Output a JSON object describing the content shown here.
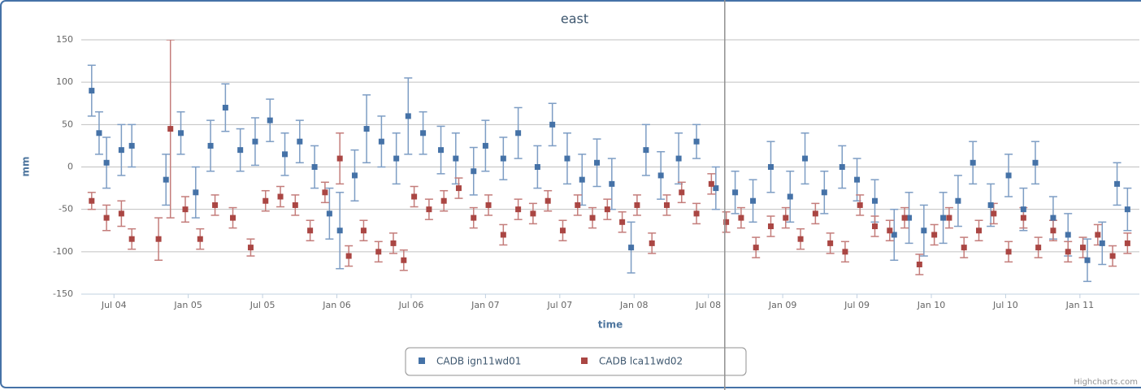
{
  "chart_data": {
    "type": "errorbar-scatter",
    "title": "east",
    "x_label": "time",
    "y_label": "mm",
    "credit": "Highcharts.com",
    "xlim": [
      2004.28,
      2011.4
    ],
    "ylim": [
      -150,
      150
    ],
    "yticks": [
      -150,
      -100,
      -50,
      0,
      50,
      100,
      150
    ],
    "xticks": [
      {
        "value": 2004.5,
        "label": "Jul 04"
      },
      {
        "value": 2005.0,
        "label": "Jan 05"
      },
      {
        "value": 2005.5,
        "label": "Jul 05"
      },
      {
        "value": 2006.0,
        "label": "Jan 06"
      },
      {
        "value": 2006.5,
        "label": "Jul 06"
      },
      {
        "value": 2007.0,
        "label": "Jan 07"
      },
      {
        "value": 2007.5,
        "label": "Jul 07"
      },
      {
        "value": 2008.0,
        "label": "Jan 08"
      },
      {
        "value": 2008.5,
        "label": "Jul 08"
      },
      {
        "value": 2009.0,
        "label": "Jan 09"
      },
      {
        "value": 2009.5,
        "label": "Jul 09"
      },
      {
        "value": 2010.0,
        "label": "Jan 10"
      },
      {
        "value": 2010.5,
        "label": "Jul 10"
      },
      {
        "value": 2011.0,
        "label": "Jan 11"
      }
    ],
    "grid": true,
    "crosshair_x": 2008.61,
    "series": [
      {
        "name": "CADB ign11wd01",
        "color": "#4572a7",
        "error_color": "#7d9dc4",
        "x": [
          2004.35,
          2004.4,
          2004.45,
          2004.55,
          2004.62,
          2004.85,
          2004.95,
          2005.05,
          2005.15,
          2005.25,
          2005.35,
          2005.45,
          2005.55,
          2005.65,
          2005.75,
          2005.85,
          2005.95,
          2006.02,
          2006.12,
          2006.2,
          2006.3,
          2006.4,
          2006.48,
          2006.58,
          2006.7,
          2006.8,
          2006.92,
          2007.0,
          2007.12,
          2007.22,
          2007.35,
          2007.45,
          2007.55,
          2007.65,
          2007.75,
          2007.85,
          2007.98,
          2008.08,
          2008.18,
          2008.3,
          2008.42,
          2008.55,
          2008.68,
          2008.8,
          2008.92,
          2009.05,
          2009.15,
          2009.28,
          2009.4,
          2009.5,
          2009.62,
          2009.75,
          2009.85,
          2009.95,
          2010.08,
          2010.18,
          2010.28,
          2010.4,
          2010.52,
          2010.62,
          2010.7,
          2010.82,
          2010.92,
          2011.05,
          2011.15,
          2011.25,
          2011.32
        ],
        "values": [
          90,
          40,
          5,
          20,
          25,
          -15,
          40,
          -30,
          25,
          70,
          20,
          30,
          55,
          15,
          30,
          0,
          -55,
          -75,
          -10,
          45,
          30,
          10,
          60,
          40,
          20,
          10,
          -5,
          25,
          10,
          40,
          0,
          50,
          10,
          -15,
          5,
          -20,
          -95,
          20,
          -10,
          10,
          30,
          -25,
          -30,
          -40,
          0,
          -35,
          10,
          -30,
          0,
          -15,
          -40,
          -80,
          -60,
          -75,
          -60,
          -40,
          5,
          -45,
          -10,
          -50,
          5,
          -60,
          -80,
          -110,
          -90,
          -20,
          -50
        ],
        "errors": [
          30,
          25,
          30,
          30,
          25,
          30,
          25,
          30,
          30,
          28,
          25,
          28,
          25,
          25,
          25,
          25,
          30,
          45,
          30,
          40,
          30,
          30,
          45,
          25,
          28,
          30,
          28,
          30,
          25,
          30,
          25,
          25,
          30,
          30,
          28,
          30,
          30,
          30,
          28,
          30,
          20,
          25,
          25,
          25,
          30,
          30,
          30,
          25,
          25,
          25,
          25,
          30,
          30,
          30,
          30,
          30,
          25,
          25,
          25,
          25,
          25,
          25,
          25,
          25,
          25,
          25,
          25
        ]
      },
      {
        "name": "CADB lca11wd02",
        "color": "#aa4643",
        "error_color": "#c47d7b",
        "x": [
          2004.35,
          2004.45,
          2004.55,
          2004.62,
          2004.8,
          2004.88,
          2004.98,
          2005.08,
          2005.18,
          2005.3,
          2005.42,
          2005.52,
          2005.62,
          2005.72,
          2005.82,
          2005.92,
          2006.02,
          2006.08,
          2006.18,
          2006.28,
          2006.38,
          2006.45,
          2006.52,
          2006.62,
          2006.72,
          2006.82,
          2006.92,
          2007.02,
          2007.12,
          2007.22,
          2007.32,
          2007.42,
          2007.52,
          2007.62,
          2007.72,
          2007.82,
          2007.92,
          2008.02,
          2008.12,
          2008.22,
          2008.32,
          2008.42,
          2008.52,
          2008.62,
          2008.72,
          2008.82,
          2008.92,
          2009.02,
          2009.12,
          2009.22,
          2009.32,
          2009.42,
          2009.52,
          2009.62,
          2009.72,
          2009.82,
          2009.92,
          2010.02,
          2010.12,
          2010.22,
          2010.32,
          2010.42,
          2010.52,
          2010.62,
          2010.72,
          2010.82,
          2010.92,
          2011.02,
          2011.12,
          2011.22,
          2011.32
        ],
        "values": [
          -40,
          -60,
          -55,
          -85,
          -85,
          45,
          -50,
          -85,
          -45,
          -60,
          -95,
          -40,
          -35,
          -45,
          -75,
          -30,
          10,
          -105,
          -75,
          -100,
          -90,
          -110,
          -35,
          -50,
          -40,
          -25,
          -60,
          -45,
          -80,
          -50,
          -55,
          -40,
          -75,
          -45,
          -60,
          -50,
          -65,
          -45,
          -90,
          -45,
          -30,
          -55,
          -20,
          -65,
          -60,
          -95,
          -70,
          -60,
          -85,
          -55,
          -90,
          -100,
          -45,
          -70,
          -75,
          -60,
          -115,
          -80,
          -60,
          -95,
          -75,
          -55,
          -100,
          -60,
          -95,
          -75,
          -100,
          -95,
          -80,
          -105,
          -90
        ],
        "errors": [
          10,
          15,
          15,
          12,
          25,
          105,
          15,
          12,
          12,
          12,
          10,
          12,
          12,
          12,
          12,
          12,
          30,
          12,
          12,
          12,
          12,
          12,
          12,
          12,
          12,
          12,
          12,
          12,
          12,
          12,
          12,
          12,
          12,
          12,
          12,
          12,
          12,
          12,
          12,
          12,
          12,
          12,
          12,
          12,
          12,
          12,
          12,
          12,
          12,
          12,
          12,
          12,
          12,
          12,
          12,
          12,
          12,
          12,
          12,
          12,
          12,
          12,
          12,
          12,
          12,
          12,
          12,
          12,
          12,
          12,
          12
        ]
      }
    ]
  }
}
